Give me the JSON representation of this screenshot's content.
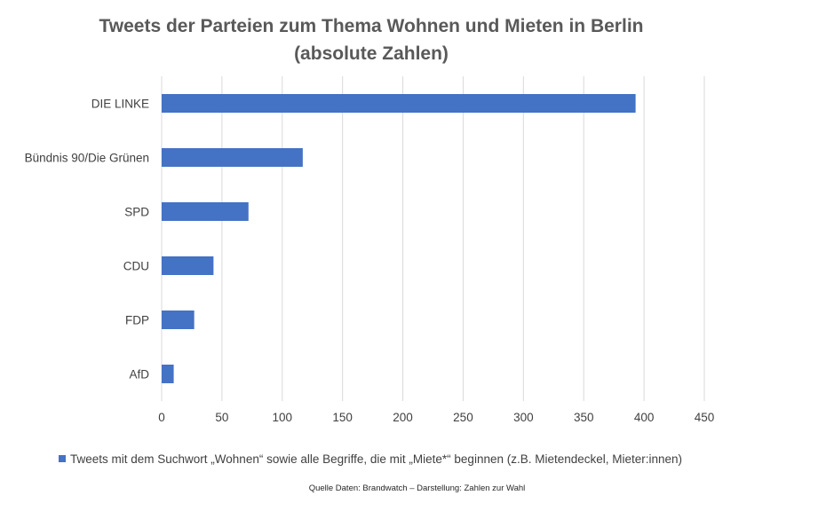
{
  "chart_data": {
    "type": "bar",
    "orientation": "horizontal",
    "title": [
      "Tweets der Parteien zum Thema Wohnen und Mieten in Berlin",
      "(absolute Zahlen)"
    ],
    "categories": [
      "DIE LINKE",
      "Bündnis 90/Die Grünen",
      "SPD",
      "CDU",
      "FDP",
      "AfD"
    ],
    "series": [
      {
        "name": "Tweets mit dem Suchwort „Wohnen“ sowie alle Begriffe, die mit „Miete*“ beginnen (z.B. Mietendeckel, Mieter:innen)",
        "values": [
          393,
          117,
          72,
          43,
          27,
          10
        ]
      }
    ],
    "xlim": [
      0,
      450
    ],
    "xticks": [
      "0",
      "50",
      "100",
      "150",
      "200",
      "250",
      "300",
      "350",
      "400",
      "450"
    ],
    "xlabel": "",
    "ylabel": "",
    "grid": true,
    "legend_position": "bottom",
    "bar_color": "#4472c4"
  },
  "source": "Quelle Daten: Brandwatch – Darstellung: Zahlen zur Wahl"
}
